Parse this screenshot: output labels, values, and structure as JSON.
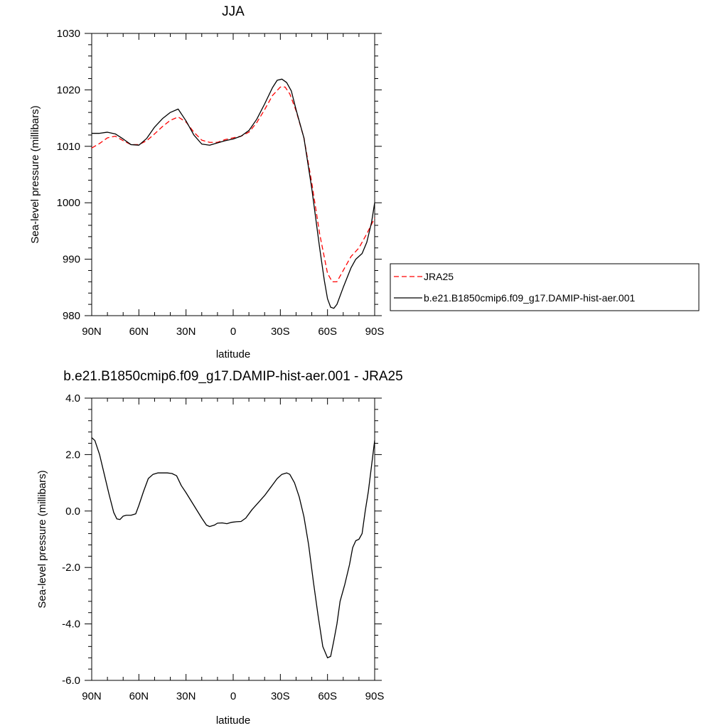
{
  "chart_data": [
    {
      "type": "line",
      "title": "JJA",
      "xlabel": "latitude",
      "ylabel": "Sea-level pressure (millibars)",
      "xlim": [
        90,
        -90
      ],
      "ylim": [
        980,
        1030
      ],
      "x_ticks": [
        {
          "value": 90,
          "label": "90N"
        },
        {
          "value": 60,
          "label": "60N"
        },
        {
          "value": 30,
          "label": "30N"
        },
        {
          "value": 0,
          "label": "0"
        },
        {
          "value": -30,
          "label": "30S"
        },
        {
          "value": -60,
          "label": "60S"
        },
        {
          "value": -90,
          "label": "90S"
        }
      ],
      "y_ticks": [
        {
          "value": 980,
          "label": "980"
        },
        {
          "value": 990,
          "label": "990"
        },
        {
          "value": 1000,
          "label": "1000"
        },
        {
          "value": 1010,
          "label": "1010"
        },
        {
          "value": 1020,
          "label": "1020"
        },
        {
          "value": 1030,
          "label": "1030"
        }
      ],
      "grid": false,
      "legend_position": "right",
      "series": [
        {
          "name": "JRA25",
          "color": "#ff0000",
          "dash": true,
          "points": [
            [
              90,
              1009.7
            ],
            [
              85,
              1010.5
            ],
            [
              80,
              1011.5
            ],
            [
              75,
              1011.8
            ],
            [
              70,
              1011.0
            ],
            [
              65,
              1010.3
            ],
            [
              60,
              1010.3
            ],
            [
              55,
              1011.0
            ],
            [
              50,
              1012.2
            ],
            [
              45,
              1013.5
            ],
            [
              40,
              1014.6
            ],
            [
              35,
              1015.2
            ],
            [
              30,
              1014.3
            ],
            [
              25,
              1012.5
            ],
            [
              20,
              1011.1
            ],
            [
              15,
              1010.7
            ],
            [
              10,
              1010.7
            ],
            [
              5,
              1011.2
            ],
            [
              0,
              1011.5
            ],
            [
              -5,
              1011.8
            ],
            [
              -10,
              1012.5
            ],
            [
              -15,
              1014.2
            ],
            [
              -20,
              1016.5
            ],
            [
              -25,
              1019.0
            ],
            [
              -30,
              1020.5
            ],
            [
              -33,
              1020.5
            ],
            [
              -36,
              1019.3
            ],
            [
              -40,
              1016.3
            ],
            [
              -45,
              1011.5
            ],
            [
              -50,
              1003.5
            ],
            [
              -55,
              994.5
            ],
            [
              -60,
              987.5
            ],
            [
              -63,
              986.0
            ],
            [
              -66,
              986.0
            ],
            [
              -70,
              988.0
            ],
            [
              -75,
              990.5
            ],
            [
              -80,
              992.0
            ],
            [
              -85,
              994.5
            ],
            [
              -90,
              997.3
            ]
          ]
        },
        {
          "name": "b.e21.B1850cmip6.f09_g17.DAMIP-hist-aer.001",
          "color": "#000000",
          "dash": false,
          "points": [
            [
              90,
              1012.3
            ],
            [
              85,
              1012.3
            ],
            [
              80,
              1012.5
            ],
            [
              75,
              1012.2
            ],
            [
              70,
              1011.3
            ],
            [
              65,
              1010.3
            ],
            [
              60,
              1010.2
            ],
            [
              55,
              1011.4
            ],
            [
              50,
              1013.4
            ],
            [
              45,
              1014.9
            ],
            [
              40,
              1016.0
            ],
            [
              35,
              1016.6
            ],
            [
              30,
              1014.5
            ],
            [
              25,
              1012.0
            ],
            [
              20,
              1010.4
            ],
            [
              15,
              1010.2
            ],
            [
              10,
              1010.6
            ],
            [
              5,
              1011.0
            ],
            [
              0,
              1011.3
            ],
            [
              -5,
              1011.8
            ],
            [
              -10,
              1012.8
            ],
            [
              -15,
              1014.8
            ],
            [
              -20,
              1017.5
            ],
            [
              -25,
              1020.4
            ],
            [
              -28,
              1021.7
            ],
            [
              -31,
              1021.9
            ],
            [
              -34,
              1021.3
            ],
            [
              -37,
              1019.8
            ],
            [
              -40,
              1016.5
            ],
            [
              -45,
              1011.5
            ],
            [
              -50,
              1002.5
            ],
            [
              -55,
              992.0
            ],
            [
              -58,
              986.2
            ],
            [
              -60,
              983.0
            ],
            [
              -62,
              981.5
            ],
            [
              -64,
              981.3
            ],
            [
              -66,
              982.0
            ],
            [
              -70,
              985.0
            ],
            [
              -75,
              988.5
            ],
            [
              -78,
              990.0
            ],
            [
              -82,
              991.0
            ],
            [
              -85,
              993.0
            ],
            [
              -88,
              996.5
            ],
            [
              -90,
              1000.0
            ]
          ]
        }
      ]
    },
    {
      "type": "line",
      "title": "b.e21.B1850cmip6.f09_g17.DAMIP-hist-aer.001 - JRA25",
      "xlabel": "latitude",
      "ylabel": "Sea-level pressure (millibars)",
      "xlim": [
        90,
        -90
      ],
      "ylim": [
        -6,
        4
      ],
      "x_ticks": [
        {
          "value": 90,
          "label": "90N"
        },
        {
          "value": 60,
          "label": "60N"
        },
        {
          "value": 30,
          "label": "30N"
        },
        {
          "value": 0,
          "label": "0"
        },
        {
          "value": -30,
          "label": "30S"
        },
        {
          "value": -60,
          "label": "60S"
        },
        {
          "value": -90,
          "label": "90S"
        }
      ],
      "y_ticks": [
        {
          "value": -6,
          "label": "-6.0"
        },
        {
          "value": -4,
          "label": "-4.0"
        },
        {
          "value": -2,
          "label": "-2.0"
        },
        {
          "value": 0,
          "label": "0.0"
        },
        {
          "value": 2,
          "label": "2.0"
        },
        {
          "value": 4,
          "label": "4.0"
        }
      ],
      "grid": false,
      "series": [
        {
          "name": "",
          "color": "#000000",
          "dash": false,
          "points": [
            [
              90,
              2.6
            ],
            [
              88,
              2.5
            ],
            [
              85,
              2.0
            ],
            [
              82,
              1.3
            ],
            [
              79,
              0.6
            ],
            [
              76,
              -0.05
            ],
            [
              74,
              -0.28
            ],
            [
              72,
              -0.3
            ],
            [
              70,
              -0.18
            ],
            [
              68,
              -0.15
            ],
            [
              65,
              -0.15
            ],
            [
              62,
              -0.1
            ],
            [
              60,
              0.2
            ],
            [
              57,
              0.7
            ],
            [
              54,
              1.15
            ],
            [
              51,
              1.3
            ],
            [
              48,
              1.35
            ],
            [
              45,
              1.35
            ],
            [
              42,
              1.35
            ],
            [
              39,
              1.33
            ],
            [
              36,
              1.25
            ],
            [
              33,
              0.9
            ],
            [
              30,
              0.65
            ],
            [
              25,
              0.2
            ],
            [
              20,
              -0.25
            ],
            [
              17,
              -0.5
            ],
            [
              15,
              -0.55
            ],
            [
              12,
              -0.5
            ],
            [
              10,
              -0.43
            ],
            [
              7,
              -0.42
            ],
            [
              4,
              -0.45
            ],
            [
              1,
              -0.4
            ],
            [
              -2,
              -0.38
            ],
            [
              -5,
              -0.37
            ],
            [
              -8,
              -0.25
            ],
            [
              -12,
              0.05
            ],
            [
              -16,
              0.3
            ],
            [
              -20,
              0.55
            ],
            [
              -24,
              0.85
            ],
            [
              -28,
              1.15
            ],
            [
              -31,
              1.3
            ],
            [
              -34,
              1.35
            ],
            [
              -36,
              1.3
            ],
            [
              -39,
              1.0
            ],
            [
              -42,
              0.5
            ],
            [
              -45,
              -0.2
            ],
            [
              -48,
              -1.2
            ],
            [
              -51,
              -2.5
            ],
            [
              -54,
              -3.7
            ],
            [
              -57,
              -4.8
            ],
            [
              -60,
              -5.2
            ],
            [
              -62,
              -5.15
            ],
            [
              -64,
              -4.6
            ],
            [
              -66,
              -4.0
            ],
            [
              -68,
              -3.2
            ],
            [
              -71,
              -2.6
            ],
            [
              -74,
              -1.9
            ],
            [
              -76,
              -1.3
            ],
            [
              -78,
              -1.05
            ],
            [
              -80,
              -1.0
            ],
            [
              -82,
              -0.8
            ],
            [
              -84,
              0.0
            ],
            [
              -86,
              0.7
            ],
            [
              -88,
              1.6
            ],
            [
              -90,
              2.5
            ]
          ]
        }
      ]
    }
  ]
}
